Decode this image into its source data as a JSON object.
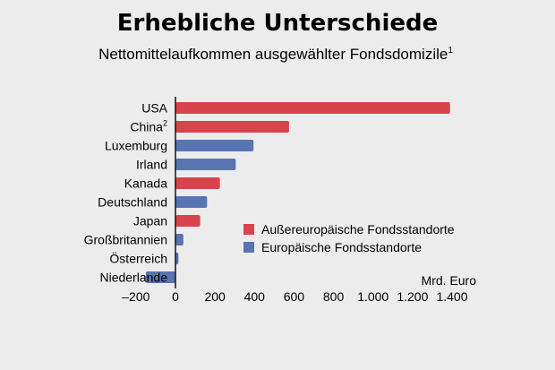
{
  "chart_data": {
    "type": "bar",
    "orientation": "horizontal",
    "title": "Erhebliche Unterschiede",
    "subtitle": "Nettomittelaufkommen ausgewählter Fondsdomizile",
    "subtitle_footnote": "1",
    "unit_label": "Mrd. Euro",
    "xlim": [
      -200,
      1400
    ],
    "xticks": [
      -200,
      0,
      200,
      400,
      600,
      800,
      1000,
      1200,
      1400
    ],
    "xtick_labels": [
      "–200",
      "0",
      "200",
      "400",
      "600",
      "800",
      "1.000",
      "1.200",
      "1.400"
    ],
    "grid": false,
    "legend_position": "right",
    "colors": {
      "non_european": "#d9434b",
      "european": "#5874b3",
      "background": "#ececec"
    },
    "legend": [
      {
        "key": "non_european",
        "label": "Außereuropäische Fondsstandorte"
      },
      {
        "key": "european",
        "label": "Europäische Fondsstandorte"
      }
    ],
    "bars": [
      {
        "label": "USA",
        "footnote": "",
        "value": 1390,
        "group": "non_european"
      },
      {
        "label": "China",
        "footnote": "2",
        "value": 575,
        "group": "non_european"
      },
      {
        "label": "Luxemburg",
        "footnote": "",
        "value": 395,
        "group": "european"
      },
      {
        "label": "Irland",
        "footnote": "",
        "value": 305,
        "group": "european"
      },
      {
        "label": "Kanada",
        "footnote": "",
        "value": 225,
        "group": "non_european"
      },
      {
        "label": "Deutschland",
        "footnote": "",
        "value": 160,
        "group": "european"
      },
      {
        "label": "Japan",
        "footnote": "",
        "value": 125,
        "group": "non_european"
      },
      {
        "label": "Großbritannien",
        "footnote": "",
        "value": 40,
        "group": "european"
      },
      {
        "label": "Österreich",
        "footnote": "",
        "value": 15,
        "group": "european"
      },
      {
        "label": "Niederlande",
        "footnote": "",
        "value": -150,
        "group": "european"
      }
    ]
  }
}
